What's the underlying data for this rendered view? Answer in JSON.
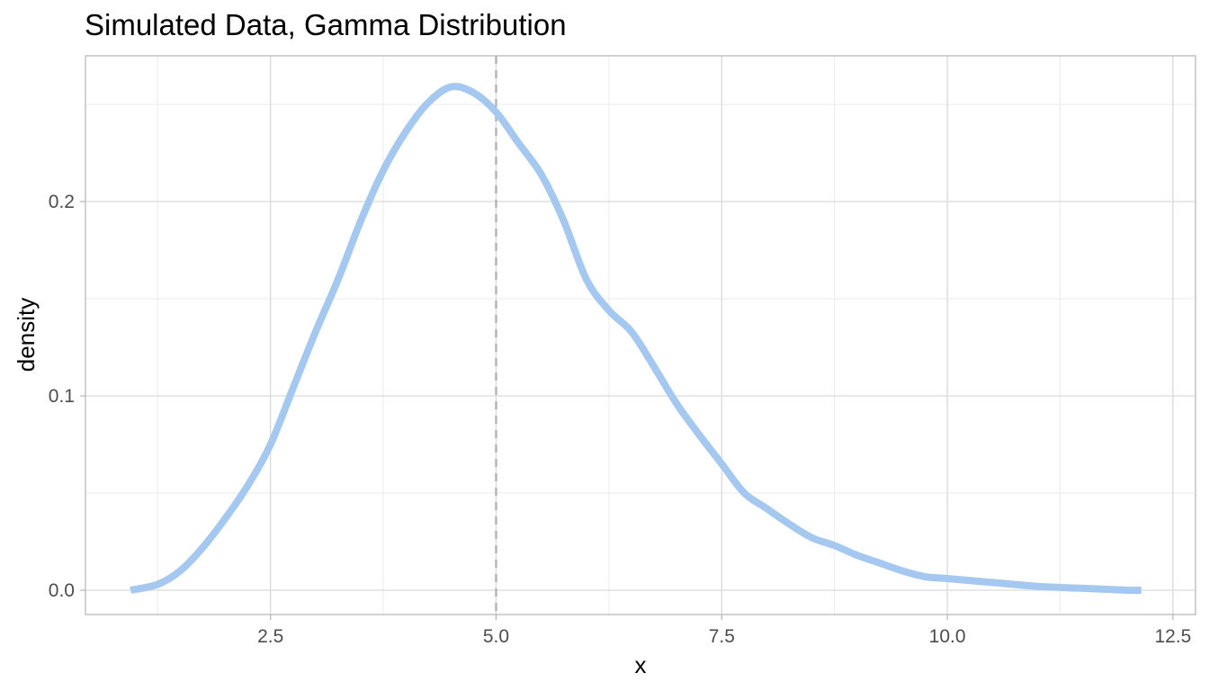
{
  "chart_data": {
    "type": "line",
    "title": "Simulated Data, Gamma Distribution",
    "xlabel": "x",
    "ylabel": "density",
    "xlim": [
      0.45,
      12.75
    ],
    "ylim": [
      -0.0125,
      0.275
    ],
    "x_ticks": [
      2.5,
      5.0,
      7.5,
      10.0,
      12.5
    ],
    "x_tick_labels": [
      "2.5",
      "5.0",
      "7.5",
      "10.0",
      "12.5"
    ],
    "y_ticks": [
      0.0,
      0.1,
      0.2
    ],
    "y_tick_labels": [
      "0.0",
      "0.1",
      "0.2"
    ],
    "grid": true,
    "legend": "none",
    "colors": {
      "line": "#a4c8ef",
      "reference_line": "#b3b3b3",
      "grid_major": "#d9d9d9",
      "grid_minor": "#ebebeb",
      "panel_border": "#b3b3b3"
    },
    "reference_lines": [
      {
        "axis": "x",
        "value": 5.0,
        "style": "dashed"
      }
    ],
    "series": [
      {
        "x": [
          0.95,
          1.25,
          1.5,
          1.75,
          2.0,
          2.25,
          2.5,
          2.75,
          3.0,
          3.25,
          3.5,
          3.75,
          4.0,
          4.25,
          4.5,
          4.75,
          5.0,
          5.25,
          5.5,
          5.75,
          6.0,
          6.25,
          6.5,
          6.75,
          7.0,
          7.25,
          7.5,
          7.75,
          8.0,
          8.25,
          8.5,
          8.75,
          9.0,
          9.25,
          9.5,
          9.75,
          10.0,
          10.5,
          11.0,
          11.5,
          12.0,
          12.15
        ],
        "values": [
          0.0,
          0.003,
          0.01,
          0.022,
          0.037,
          0.054,
          0.075,
          0.104,
          0.133,
          0.16,
          0.19,
          0.216,
          0.236,
          0.251,
          0.259,
          0.256,
          0.246,
          0.23,
          0.214,
          0.19,
          0.16,
          0.144,
          0.133,
          0.115,
          0.096,
          0.08,
          0.065,
          0.05,
          0.042,
          0.034,
          0.027,
          0.023,
          0.018,
          0.014,
          0.01,
          0.007,
          0.006,
          0.004,
          0.002,
          0.001,
          0.0,
          0.0
        ]
      }
    ]
  }
}
